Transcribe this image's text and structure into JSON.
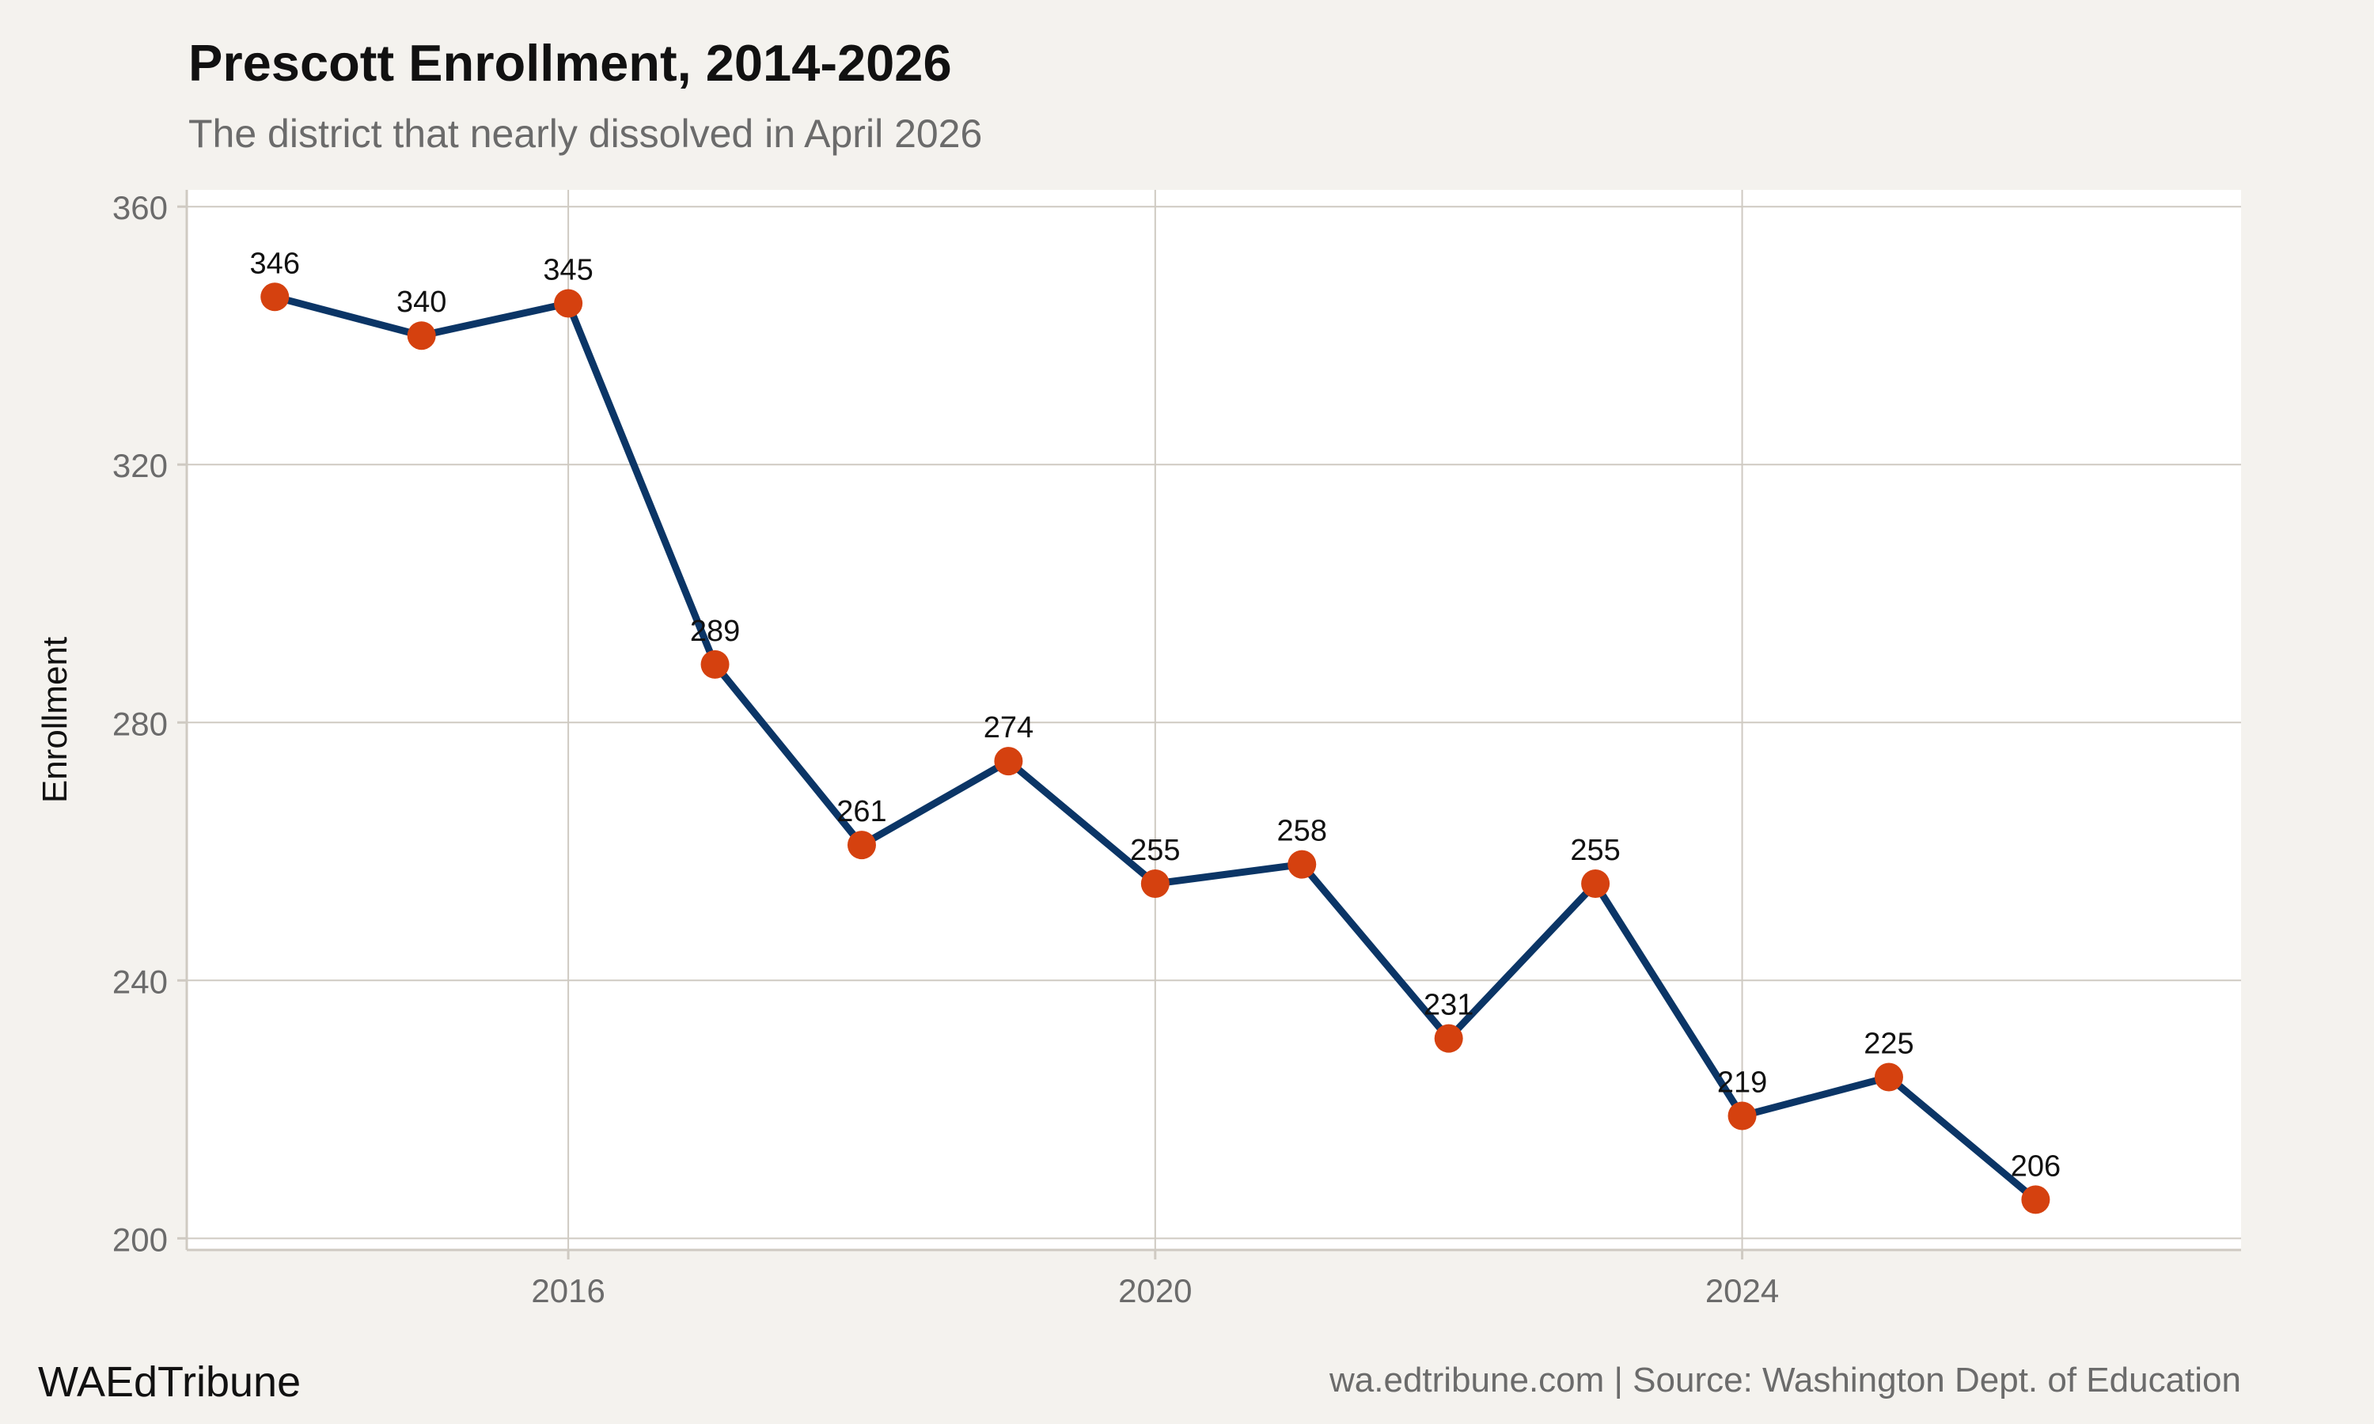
{
  "title": "Prescott Enrollment, 2014-2026",
  "subtitle": "The district that nearly dissolved in April 2026",
  "brand": "WAEdTribune",
  "source": "wa.edtribune.com | Source: Washington Dept. of Education",
  "colors": {
    "background": "#f4f2ee",
    "panel": "#ffffff",
    "grid": "#cfcac2",
    "line": "#0b3566",
    "point": "#d5410f",
    "axis_text": "#6b6b6b",
    "label_text": "#111111"
  },
  "chart_data": {
    "type": "line",
    "title": "Prescott Enrollment, 2014-2026",
    "subtitle": "The district that nearly dissolved in April 2026",
    "xlabel": "",
    "ylabel": "Enrollment",
    "x": [
      2014,
      2015,
      2016,
      2017,
      2018,
      2019,
      2020,
      2021,
      2022,
      2023,
      2024,
      2025,
      2026
    ],
    "series": [
      {
        "values": [
          346,
          340,
          345,
          289,
          261,
          274,
          255,
          258,
          231,
          255,
          219,
          225,
          206
        ]
      }
    ],
    "data_labels": [
      "346",
      "340",
      "345",
      "289",
      "261",
      "274",
      "255",
      "258",
      "231",
      "255",
      "219",
      "225",
      "206"
    ],
    "xlim": [
      2013.4,
      2027.4
    ],
    "ylim": [
      198.2,
      362.6
    ],
    "x_ticks": [
      2016,
      2020,
      2024
    ],
    "x_tick_labels": [
      "2016",
      "2020",
      "2024"
    ],
    "y_ticks": [
      200,
      240,
      280,
      320,
      360
    ],
    "y_tick_labels": [
      "200",
      "240",
      "280",
      "320",
      "360"
    ],
    "grid": true,
    "legend": "none"
  }
}
